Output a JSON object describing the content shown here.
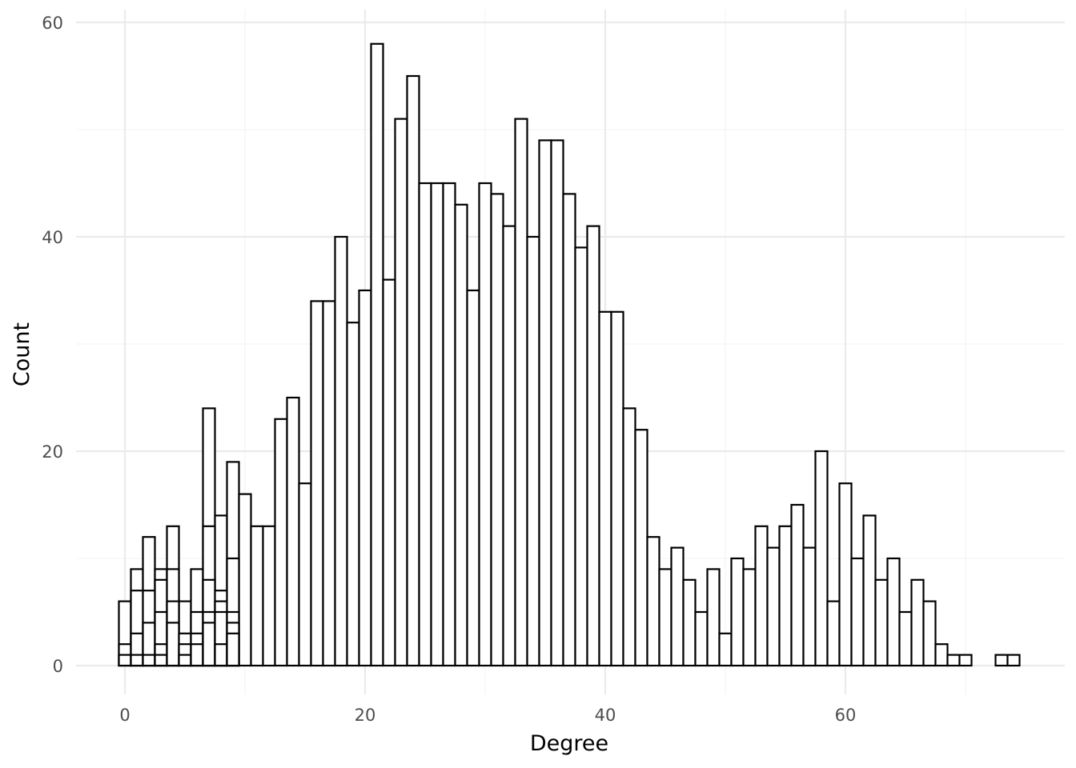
{
  "chart_data": {
    "type": "bar",
    "xlabel": "Degree",
    "ylabel": "Count",
    "xlim": [
      -4,
      78
    ],
    "ylim": [
      -3,
      61
    ],
    "x_ticks": [
      0,
      20,
      40,
      60
    ],
    "y_ticks": [
      0,
      20,
      40,
      60
    ],
    "bin_width": 1,
    "grid": true,
    "bar_fill": "#ffffff",
    "bar_outline": "#000000",
    "note": "overlapping histogram outlines at low degree values (layers drawn in front of tall bars)",
    "bars": [
      {
        "x": 0,
        "y": 6
      },
      {
        "x": 1,
        "y": 9
      },
      {
        "x": 2,
        "y": 12
      },
      {
        "x": 3,
        "y": 9
      },
      {
        "x": 4,
        "y": 13
      },
      {
        "x": 5,
        "y": 6
      },
      {
        "x": 6,
        "y": 9
      },
      {
        "x": 7,
        "y": 24
      },
      {
        "x": 8,
        "y": 14
      },
      {
        "x": 9,
        "y": 19
      },
      {
        "x": 10,
        "y": 16
      },
      {
        "x": 11,
        "y": 13
      },
      {
        "x": 12,
        "y": 13
      },
      {
        "x": 13,
        "y": 23
      },
      {
        "x": 14,
        "y": 25
      },
      {
        "x": 15,
        "y": 17
      },
      {
        "x": 16,
        "y": 34
      },
      {
        "x": 17,
        "y": 34
      },
      {
        "x": 18,
        "y": 40
      },
      {
        "x": 19,
        "y": 32
      },
      {
        "x": 20,
        "y": 35
      },
      {
        "x": 21,
        "y": 58
      },
      {
        "x": 22,
        "y": 36
      },
      {
        "x": 23,
        "y": 51
      },
      {
        "x": 24,
        "y": 55
      },
      {
        "x": 25,
        "y": 45
      },
      {
        "x": 26,
        "y": 45
      },
      {
        "x": 27,
        "y": 45
      },
      {
        "x": 28,
        "y": 43
      },
      {
        "x": 29,
        "y": 35
      },
      {
        "x": 30,
        "y": 45
      },
      {
        "x": 31,
        "y": 44
      },
      {
        "x": 32,
        "y": 41
      },
      {
        "x": 33,
        "y": 51
      },
      {
        "x": 34,
        "y": 40
      },
      {
        "x": 35,
        "y": 49
      },
      {
        "x": 36,
        "y": 49
      },
      {
        "x": 37,
        "y": 44
      },
      {
        "x": 38,
        "y": 39
      },
      {
        "x": 39,
        "y": 41
      },
      {
        "x": 40,
        "y": 33
      },
      {
        "x": 41,
        "y": 33
      },
      {
        "x": 42,
        "y": 24
      },
      {
        "x": 43,
        "y": 22
      },
      {
        "x": 44,
        "y": 12
      },
      {
        "x": 45,
        "y": 9
      },
      {
        "x": 46,
        "y": 11
      },
      {
        "x": 47,
        "y": 8
      },
      {
        "x": 48,
        "y": 5
      },
      {
        "x": 49,
        "y": 9
      },
      {
        "x": 50,
        "y": 3
      },
      {
        "x": 51,
        "y": 10
      },
      {
        "x": 52,
        "y": 9
      },
      {
        "x": 53,
        "y": 13
      },
      {
        "x": 54,
        "y": 11
      },
      {
        "x": 55,
        "y": 13
      },
      {
        "x": 56,
        "y": 15
      },
      {
        "x": 57,
        "y": 11
      },
      {
        "x": 58,
        "y": 20
      },
      {
        "x": 59,
        "y": 6
      },
      {
        "x": 60,
        "y": 17
      },
      {
        "x": 61,
        "y": 10
      },
      {
        "x": 62,
        "y": 14
      },
      {
        "x": 63,
        "y": 8
      },
      {
        "x": 64,
        "y": 10
      },
      {
        "x": 65,
        "y": 5
      },
      {
        "x": 66,
        "y": 8
      },
      {
        "x": 67,
        "y": 6
      },
      {
        "x": 68,
        "y": 2
      },
      {
        "x": 69,
        "y": 1
      },
      {
        "x": 70,
        "y": 1
      },
      {
        "x": 73,
        "y": 1
      },
      {
        "x": 74,
        "y": 1
      }
    ],
    "overlay_bars": [
      {
        "x": 0,
        "y": 2
      },
      {
        "x": 0,
        "y": 1
      },
      {
        "x": 1,
        "y": 7
      },
      {
        "x": 1,
        "y": 3
      },
      {
        "x": 1,
        "y": 1
      },
      {
        "x": 2,
        "y": 7
      },
      {
        "x": 2,
        "y": 4
      },
      {
        "x": 2,
        "y": 1
      },
      {
        "x": 3,
        "y": 8
      },
      {
        "x": 3,
        "y": 5
      },
      {
        "x": 3,
        "y": 2
      },
      {
        "x": 3,
        "y": 1
      },
      {
        "x": 4,
        "y": 9
      },
      {
        "x": 4,
        "y": 6
      },
      {
        "x": 4,
        "y": 4
      },
      {
        "x": 5,
        "y": 3
      },
      {
        "x": 5,
        "y": 2
      },
      {
        "x": 5,
        "y": 1
      },
      {
        "x": 6,
        "y": 5
      },
      {
        "x": 6,
        "y": 3
      },
      {
        "x": 6,
        "y": 2
      },
      {
        "x": 7,
        "y": 13
      },
      {
        "x": 7,
        "y": 8
      },
      {
        "x": 7,
        "y": 5
      },
      {
        "x": 7,
        "y": 4
      },
      {
        "x": 8,
        "y": 7
      },
      {
        "x": 8,
        "y": 6
      },
      {
        "x": 8,
        "y": 5
      },
      {
        "x": 8,
        "y": 2
      },
      {
        "x": 9,
        "y": 10
      },
      {
        "x": 9,
        "y": 5
      },
      {
        "x": 9,
        "y": 4
      },
      {
        "x": 9,
        "y": 3
      }
    ]
  }
}
